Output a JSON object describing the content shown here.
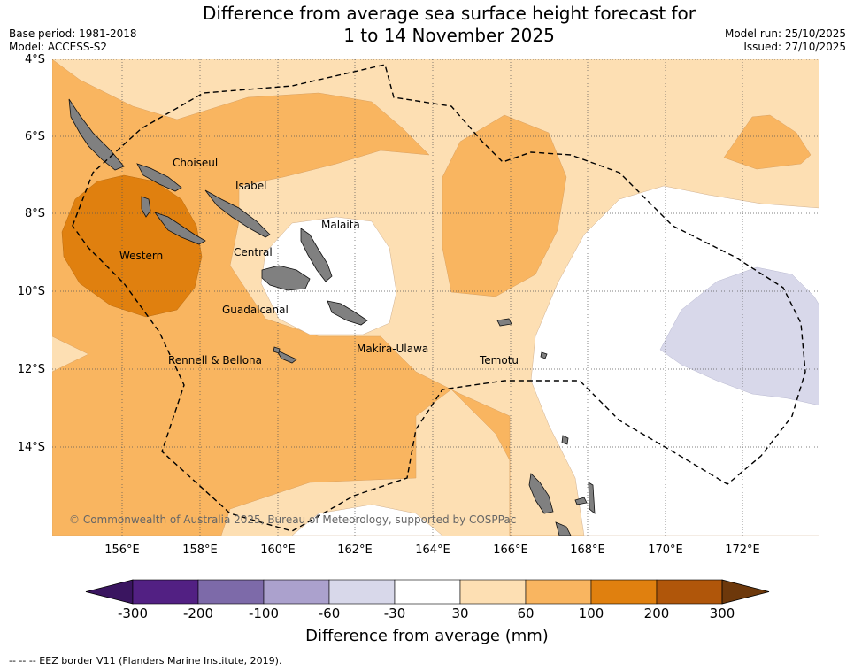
{
  "header": {
    "title_line1": "Difference from average sea surface height forecast for",
    "title_line2": "1 to 14 November 2025",
    "base_period": "Base period: 1981-2018",
    "model": "Model: ACCESS-S2",
    "model_run": "Model run: 25/10/2025",
    "issued": "Issued: 27/10/2025"
  },
  "axes": {
    "lat_labels": [
      "4°S",
      "6°S",
      "8°S",
      "10°S",
      "12°S",
      "14°S"
    ],
    "lon_labels": [
      "156°E",
      "158°E",
      "160°E",
      "162°E",
      "164°E",
      "166°E",
      "168°E",
      "170°E",
      "172°E"
    ]
  },
  "regions": {
    "choiseul": "Choiseul",
    "isabel": "Isabel",
    "malaita": "Malaita",
    "western": "Western",
    "central": "Central",
    "guadalcanal": "Guadalcanal",
    "makira_ulawa": "Makira-Ulawa",
    "temotu": "Temotu",
    "rennell_bellona": "Rennell & Bellona"
  },
  "copyright": "© Commonwealth of Australia 2025, Bureau of Meteorology, supported by COSPPac",
  "colorbar": {
    "title": "Difference from average (mm)",
    "ticks": [
      "-300",
      "-200",
      "-100",
      "-60",
      "-30",
      "30",
      "60",
      "100",
      "200",
      "300"
    ],
    "colors": [
      "#3a1560",
      "#522083",
      "#7d6aa9",
      "#aba1cd",
      "#d8d8ea",
      "#ffffff",
      "#fddfb3",
      "#f9b560",
      "#e0800f",
      "#b0560a",
      "#6d380b"
    ]
  },
  "legend_text": "--  --  -- EEZ border V11 (Flanders Marine Institute, 2019)."
}
